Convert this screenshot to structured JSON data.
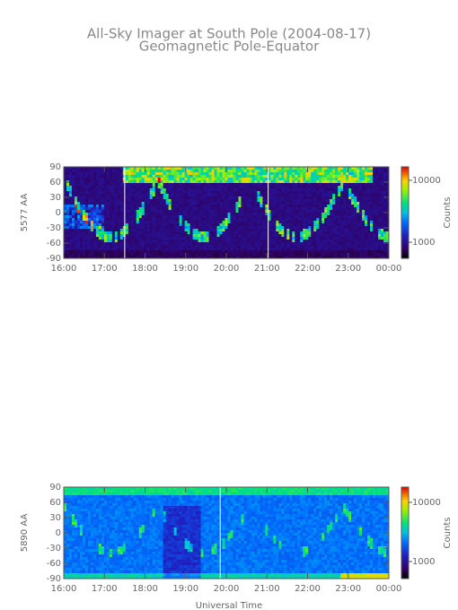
{
  "title": "All-Sky Imager at South Pole (2004-08-17)",
  "subtitle": "Geomagnetic Pole-Equator",
  "xlabel": "Universal Time",
  "chart_data": [
    {
      "type": "heatmap",
      "ylabel": "5577 AA",
      "colorbar_label": "Counts",
      "xlim": [
        16,
        24
      ],
      "xticks": [
        {
          "value": 16,
          "label": "16:00"
        },
        {
          "value": 17,
          "label": "17:00"
        },
        {
          "value": 18,
          "label": "18:00"
        },
        {
          "value": 19,
          "label": "19:00"
        },
        {
          "value": 20,
          "label": "20:00"
        },
        {
          "value": 21,
          "label": "21:00"
        },
        {
          "value": 22,
          "label": "22:00"
        },
        {
          "value": 23,
          "label": "23:00"
        },
        {
          "value": 24,
          "label": "00:00"
        }
      ],
      "ylim": [
        -90,
        90
      ],
      "yticks": [
        90,
        60,
        30,
        0,
        -30,
        -60,
        -90
      ],
      "clim": [
        550,
        16500
      ],
      "clog": true,
      "cticks": [
        10000,
        1000
      ]
    },
    {
      "type": "heatmap",
      "ylabel": "5890 AA",
      "colorbar_label": "Counts",
      "xlim": [
        16,
        24
      ],
      "xticks": [
        {
          "value": 16,
          "label": "16:00"
        },
        {
          "value": 17,
          "label": "17:00"
        },
        {
          "value": 18,
          "label": "18:00"
        },
        {
          "value": 19,
          "label": "19:00"
        },
        {
          "value": 20,
          "label": "20:00"
        },
        {
          "value": 21,
          "label": "21:00"
        },
        {
          "value": 22,
          "label": "22:00"
        },
        {
          "value": 23,
          "label": "23:00"
        },
        {
          "value": 24,
          "label": "00:00"
        }
      ],
      "ylim": [
        -90,
        90
      ],
      "yticks": [
        90,
        60,
        30,
        0,
        -30,
        -60,
        -90
      ],
      "clim": [
        515,
        18100
      ],
      "clog": true,
      "cticks": [
        10000,
        1000
      ]
    }
  ]
}
